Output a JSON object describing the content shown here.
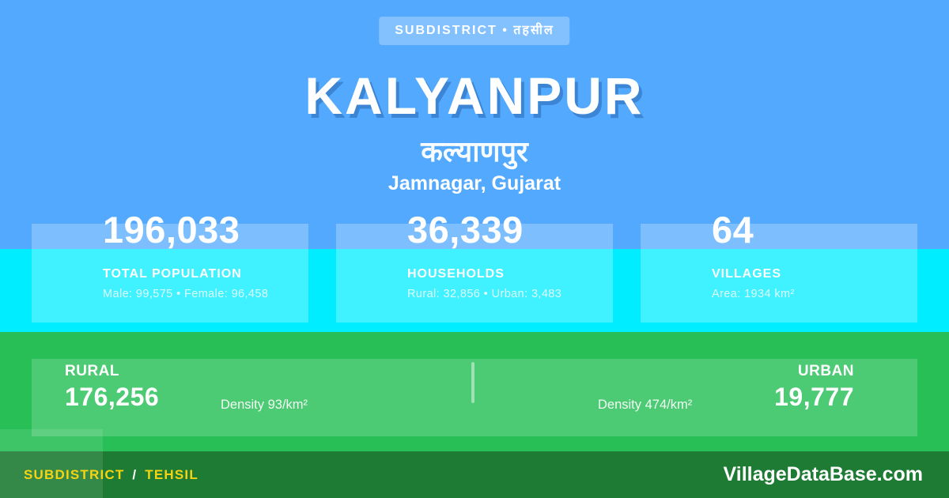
{
  "badge": {
    "label": "SUBDISTRICT • तहसील"
  },
  "header": {
    "title": "KALYANPUR",
    "native_title": "कल्याणपुर",
    "location": "Jamnagar, Gujarat"
  },
  "stats": [
    {
      "value": "196,033",
      "label": "TOTAL POPULATION",
      "detail": "Male: 99,575 • Female: 96,458"
    },
    {
      "value": "36,339",
      "label": "HOUSEHOLDS",
      "detail": "Rural: 32,856 • Urban: 3,483"
    },
    {
      "value": "64",
      "label": "VILLAGES",
      "detail": "Area: 1934 km²"
    }
  ],
  "breakdown": {
    "rural": {
      "label": "RURAL",
      "value": "176,256",
      "density": "Density 93/km²"
    },
    "urban": {
      "label": "URBAN",
      "value": "19,777",
      "density": "Density 474/km²"
    }
  },
  "footer": {
    "left_primary": "SUBDISTRICT",
    "left_separator": "/",
    "left_secondary": "TEHSIL",
    "brand": "VillageDataBase.com"
  },
  "colors": {
    "background_blue": "#52a9fe",
    "band_cyan": "#00edff",
    "band_green": "#27bf56",
    "footer_green": "#1e7b34",
    "accent_yellow": "#f7d312",
    "title_shadow_blue": "#3c85d4"
  }
}
